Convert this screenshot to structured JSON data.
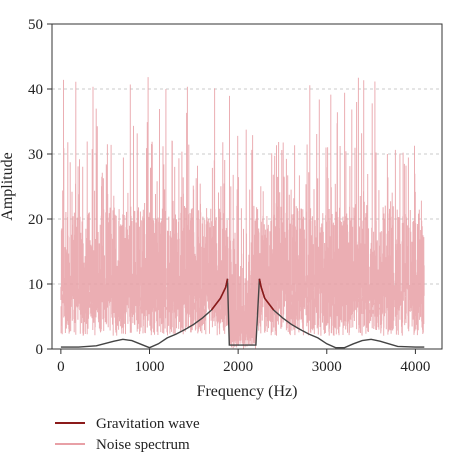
{
  "chart_data": {
    "type": "line",
    "title": "",
    "xlabel": "Frequency (Hz)",
    "ylabel": "Amplitude",
    "xlim": [
      -100,
      4300
    ],
    "ylim": [
      0,
      50
    ],
    "x_ticks": [
      0,
      1000,
      2000,
      3000,
      4000
    ],
    "x_tick_labels": [
      "0",
      "1000",
      "2000",
      "3000",
      "4000"
    ],
    "y_ticks": [
      0,
      10,
      20,
      30,
      40,
      50
    ],
    "y_tick_labels": [
      "0",
      "10",
      "20",
      "30",
      "40",
      "50"
    ],
    "grid": "horizontal dashed",
    "legend_placement": "bottom",
    "series": [
      {
        "name": "Gravitation wave",
        "color": "#8b1a1a",
        "x": [
          0,
          200,
          400,
          600,
          700,
          800,
          1000,
          1100,
          1200,
          1300,
          1400,
          1500,
          1600,
          1700,
          1800,
          1860,
          1880,
          1900,
          2000,
          2100,
          2150,
          2200,
          2240,
          2260,
          2300,
          2400,
          2500,
          2600,
          2700,
          2800,
          2900,
          3000,
          3100,
          3200,
          3300,
          3400,
          3500,
          3600,
          3800,
          4000,
          4100
        ],
        "y": [
          0.3,
          0.3,
          0.5,
          1.2,
          1.5,
          1.3,
          0.2,
          0.8,
          1.7,
          2.3,
          3.0,
          3.8,
          4.8,
          6.0,
          7.8,
          9.5,
          10.8,
          0.6,
          0.6,
          0.6,
          0.6,
          0.6,
          10.8,
          9.5,
          7.8,
          6.0,
          4.8,
          3.8,
          3.0,
          2.3,
          1.7,
          0.8,
          0.2,
          0.2,
          0.8,
          1.3,
          1.5,
          1.2,
          0.4,
          0.3,
          0.3
        ]
      },
      {
        "name": "Noise spectrum",
        "color": "#e8a0a6",
        "x_range": [
          0,
          4100
        ],
        "typical_range": [
          3,
          30
        ],
        "peak": 42,
        "center_dip_range": [
          1900,
          2200
        ],
        "center_dip_min": 0
      }
    ],
    "legend": [
      "Gravitation wave",
      "Noise spectrum"
    ]
  }
}
